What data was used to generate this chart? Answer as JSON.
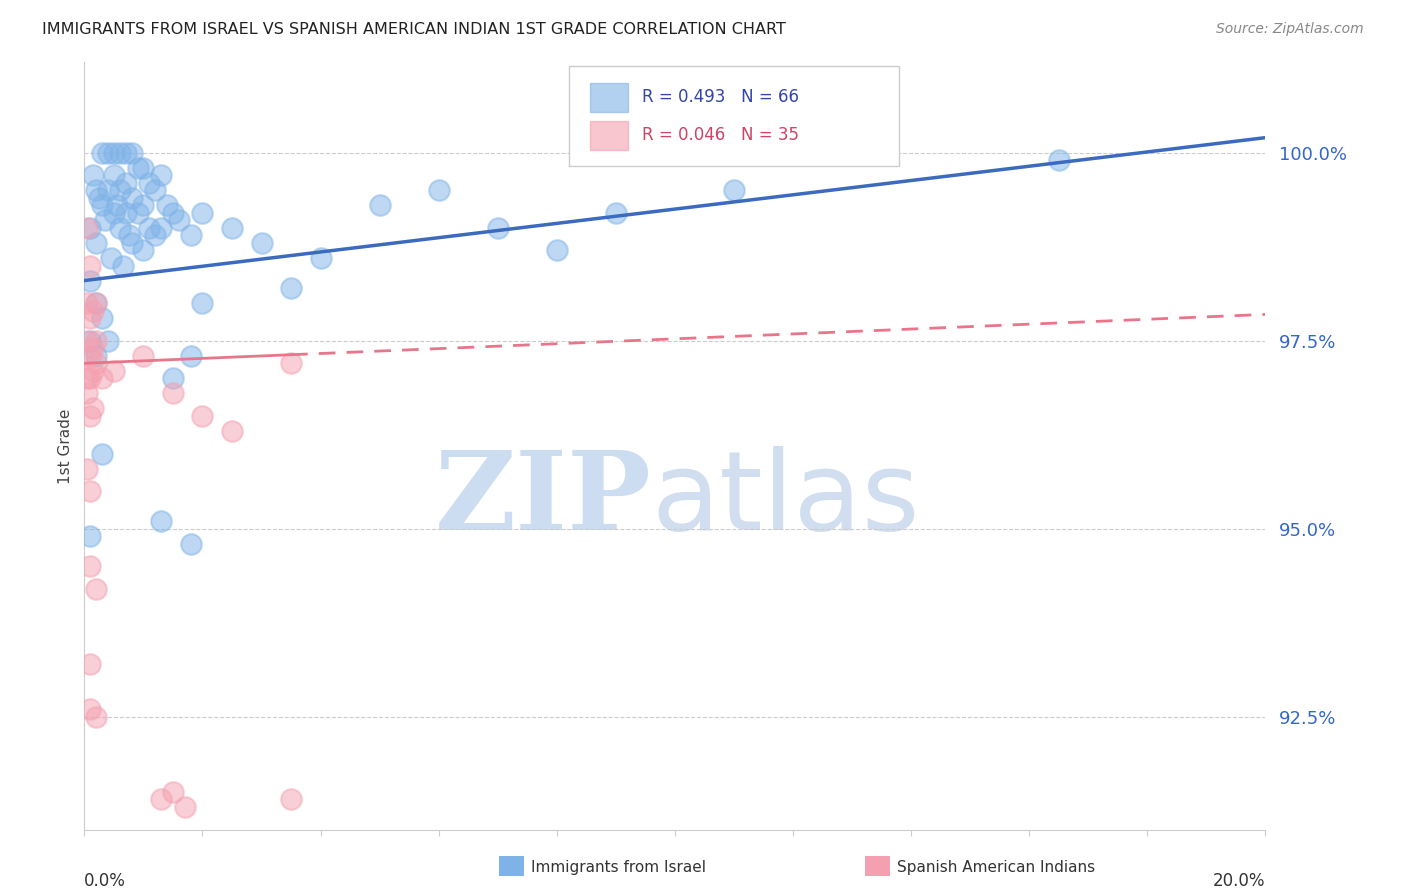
{
  "title": "IMMIGRANTS FROM ISRAEL VS SPANISH AMERICAN INDIAN 1ST GRADE CORRELATION CHART",
  "source": "Source: ZipAtlas.com",
  "ylabel": "1st Grade",
  "xmin": 0.0,
  "xmax": 20.0,
  "ymin": 91.0,
  "ymax": 101.2,
  "ytick_vals": [
    92.5,
    95.0,
    97.5,
    100.0
  ],
  "legend1_label": "R = 0.493   N = 66",
  "legend2_label": "R = 0.046   N = 35",
  "legend1_color": "#7fb3e8",
  "legend2_color": "#f4a0b0",
  "blue_line_color": "#3b6abf",
  "pink_line_color": "#e8758a",
  "watermark_zip_color": "#c8daf0",
  "watermark_atlas_color": "#bdd0eb",
  "legend_items": [
    "Immigrants from Israel",
    "Spanish American Indians"
  ],
  "blue_line_x0": 0.0,
  "blue_line_y0": 98.3,
  "blue_line_x1": 20.0,
  "blue_line_y1": 100.2,
  "pink_line_x0": 0.0,
  "pink_line_y0": 97.2,
  "pink_line_x1": 20.0,
  "pink_line_y1": 97.85,
  "pink_solid_end": 3.5,
  "blue_dots": [
    [
      0.1,
      99.0
    ],
    [
      0.2,
      99.5
    ],
    [
      0.2,
      98.8
    ],
    [
      0.3,
      100.0
    ],
    [
      0.3,
      99.3
    ],
    [
      0.4,
      100.0
    ],
    [
      0.4,
      99.5
    ],
    [
      0.5,
      100.0
    ],
    [
      0.5,
      99.7
    ],
    [
      0.5,
      99.2
    ],
    [
      0.6,
      100.0
    ],
    [
      0.6,
      99.5
    ],
    [
      0.6,
      99.0
    ],
    [
      0.7,
      100.0
    ],
    [
      0.7,
      99.6
    ],
    [
      0.7,
      99.2
    ],
    [
      0.8,
      100.0
    ],
    [
      0.8,
      99.4
    ],
    [
      0.8,
      98.8
    ],
    [
      0.9,
      99.8
    ],
    [
      0.9,
      99.2
    ],
    [
      1.0,
      99.8
    ],
    [
      1.0,
      99.3
    ],
    [
      1.0,
      98.7
    ],
    [
      1.1,
      99.6
    ],
    [
      1.1,
      99.0
    ],
    [
      1.2,
      99.5
    ],
    [
      1.2,
      98.9
    ],
    [
      1.3,
      99.7
    ],
    [
      1.3,
      99.0
    ],
    [
      1.4,
      99.3
    ],
    [
      1.5,
      99.2
    ],
    [
      1.6,
      99.1
    ],
    [
      1.8,
      98.9
    ],
    [
      0.15,
      99.7
    ],
    [
      0.25,
      99.4
    ],
    [
      0.35,
      99.1
    ],
    [
      0.45,
      98.6
    ],
    [
      0.55,
      99.3
    ],
    [
      0.65,
      98.5
    ],
    [
      0.75,
      98.9
    ],
    [
      2.0,
      99.2
    ],
    [
      2.5,
      99.0
    ],
    [
      3.0,
      98.8
    ],
    [
      4.0,
      98.6
    ],
    [
      5.0,
      99.3
    ],
    [
      6.0,
      99.5
    ],
    [
      7.0,
      99.0
    ],
    [
      8.0,
      98.7
    ],
    [
      9.0,
      99.2
    ],
    [
      11.0,
      99.5
    ],
    [
      16.5,
      99.9
    ],
    [
      0.1,
      97.5
    ],
    [
      0.2,
      97.3
    ],
    [
      0.3,
      97.8
    ],
    [
      0.4,
      97.5
    ],
    [
      1.5,
      97.0
    ],
    [
      2.0,
      98.0
    ],
    [
      0.1,
      98.3
    ],
    [
      0.2,
      98.0
    ],
    [
      1.8,
      97.3
    ],
    [
      3.5,
      98.2
    ],
    [
      0.1,
      94.9
    ],
    [
      1.8,
      94.8
    ],
    [
      0.3,
      96.0
    ],
    [
      1.3,
      95.1
    ]
  ],
  "pink_dots": [
    [
      0.05,
      99.0
    ],
    [
      0.1,
      98.5
    ],
    [
      0.05,
      98.0
    ],
    [
      0.1,
      97.8
    ],
    [
      0.15,
      97.9
    ],
    [
      0.2,
      98.0
    ],
    [
      0.05,
      97.5
    ],
    [
      0.1,
      97.3
    ],
    [
      0.15,
      97.4
    ],
    [
      0.2,
      97.5
    ],
    [
      0.05,
      97.0
    ],
    [
      0.1,
      97.0
    ],
    [
      0.15,
      97.1
    ],
    [
      0.05,
      96.8
    ],
    [
      0.1,
      96.5
    ],
    [
      0.15,
      96.6
    ],
    [
      0.2,
      97.2
    ],
    [
      0.3,
      97.0
    ],
    [
      0.5,
      97.1
    ],
    [
      1.0,
      97.3
    ],
    [
      1.5,
      96.8
    ],
    [
      2.0,
      96.5
    ],
    [
      2.5,
      96.3
    ],
    [
      3.5,
      97.2
    ],
    [
      0.05,
      95.8
    ],
    [
      0.1,
      95.5
    ],
    [
      0.1,
      94.5
    ],
    [
      0.2,
      94.2
    ],
    [
      0.1,
      93.2
    ],
    [
      0.1,
      92.6
    ],
    [
      0.2,
      92.5
    ],
    [
      1.3,
      91.4
    ],
    [
      1.5,
      91.5
    ],
    [
      1.7,
      91.3
    ],
    [
      3.5,
      91.4
    ]
  ]
}
